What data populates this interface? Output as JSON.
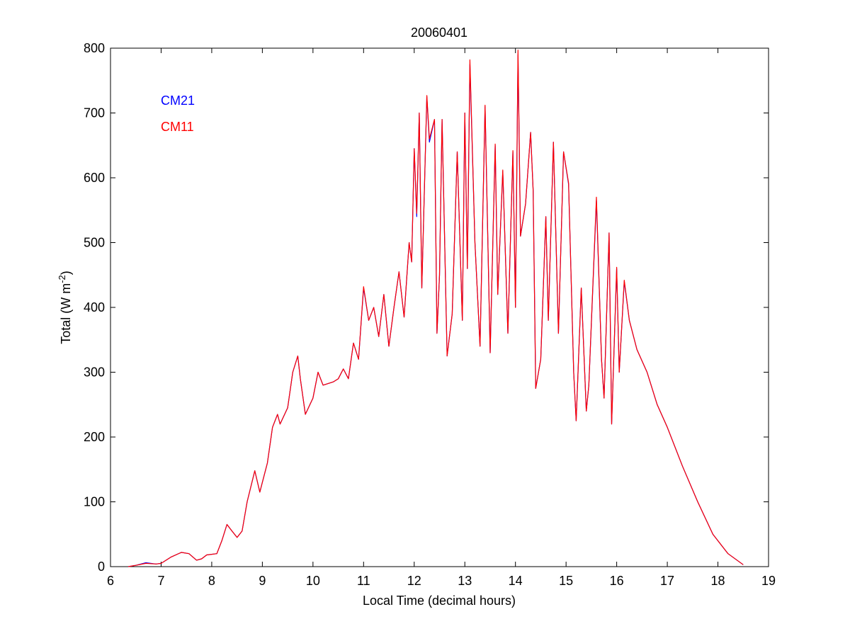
{
  "chart_data": {
    "type": "line",
    "title": "20060401",
    "xlabel": "Local Time (decimal hours)",
    "ylabel_main": "Total (W m",
    "ylabel_sup": "-2",
    "ylabel_close": ")",
    "xlim": [
      6,
      19
    ],
    "ylim": [
      0,
      800
    ],
    "xticks": [
      6,
      7,
      8,
      9,
      10,
      11,
      12,
      13,
      14,
      15,
      16,
      17,
      18,
      19
    ],
    "yticks": [
      0,
      100,
      200,
      300,
      400,
      500,
      600,
      700,
      800
    ],
    "grid": false,
    "legend_placement": "top-left",
    "x": [
      6.35,
      6.5,
      6.7,
      6.9,
      7.0,
      7.2,
      7.4,
      7.55,
      7.7,
      7.8,
      7.9,
      8.1,
      8.2,
      8.3,
      8.4,
      8.5,
      8.6,
      8.7,
      8.85,
      8.95,
      9.1,
      9.2,
      9.3,
      9.35,
      9.5,
      9.6,
      9.7,
      9.75,
      9.85,
      10.0,
      10.1,
      10.2,
      10.4,
      10.5,
      10.6,
      10.7,
      10.8,
      10.9,
      11.0,
      11.1,
      11.2,
      11.3,
      11.4,
      11.5,
      11.6,
      11.7,
      11.8,
      11.9,
      11.95,
      12.0,
      12.05,
      12.1,
      12.15,
      12.25,
      12.3,
      12.4,
      12.45,
      12.5,
      12.55,
      12.65,
      12.75,
      12.85,
      12.95,
      13.0,
      13.05,
      13.1,
      13.2,
      13.3,
      13.4,
      13.5,
      13.6,
      13.65,
      13.75,
      13.85,
      13.95,
      14.0,
      14.05,
      14.1,
      14.2,
      14.3,
      14.35,
      14.4,
      14.5,
      14.6,
      14.65,
      14.75,
      14.85,
      14.95,
      15.05,
      15.15,
      15.2,
      15.3,
      15.4,
      15.45,
      15.6,
      15.7,
      15.75,
      15.85,
      15.9,
      16.0,
      16.05,
      16.15,
      16.25,
      16.4,
      16.6,
      16.8,
      17.0,
      17.3,
      17.6,
      17.9,
      18.2,
      18.5
    ],
    "series": [
      {
        "name": "CM21",
        "color": "#0000ff",
        "values": [
          0,
          2,
          6,
          4,
          5,
          15,
          22,
          20,
          10,
          12,
          18,
          20,
          40,
          65,
          55,
          45,
          55,
          100,
          148,
          115,
          160,
          215,
          235,
          220,
          245,
          300,
          325,
          290,
          235,
          260,
          300,
          280,
          285,
          290,
          305,
          290,
          345,
          320,
          430,
          380,
          400,
          355,
          420,
          340,
          400,
          455,
          385,
          500,
          470,
          645,
          540,
          700,
          430,
          725,
          655,
          690,
          360,
          450,
          690,
          325,
          390,
          640,
          380,
          700,
          460,
          775,
          500,
          340,
          710,
          330,
          650,
          420,
          610,
          360,
          640,
          400,
          790,
          510,
          560,
          670,
          580,
          275,
          320,
          540,
          380,
          655,
          360,
          640,
          590,
          300,
          225,
          430,
          240,
          280,
          565,
          320,
          260,
          515,
          220,
          460,
          300,
          440,
          380,
          335,
          300,
          250,
          215,
          155,
          100,
          50,
          20,
          3
        ]
      },
      {
        "name": "CM11",
        "color": "#ff0000",
        "values": [
          0,
          2,
          5,
          4,
          5,
          15,
          22,
          20,
          10,
          12,
          18,
          20,
          40,
          65,
          55,
          45,
          55,
          100,
          148,
          115,
          160,
          215,
          235,
          220,
          245,
          300,
          325,
          290,
          235,
          260,
          300,
          280,
          285,
          290,
          305,
          290,
          345,
          320,
          432,
          380,
          400,
          355,
          420,
          340,
          400,
          455,
          385,
          500,
          470,
          645,
          545,
          700,
          430,
          727,
          660,
          690,
          360,
          450,
          690,
          325,
          390,
          640,
          380,
          700,
          460,
          782,
          500,
          340,
          712,
          330,
          652,
          420,
          612,
          360,
          642,
          400,
          797,
          510,
          560,
          670,
          580,
          275,
          320,
          540,
          380,
          655,
          360,
          640,
          592,
          300,
          225,
          430,
          240,
          280,
          570,
          320,
          260,
          515,
          220,
          462,
          300,
          442,
          380,
          335,
          300,
          250,
          215,
          155,
          100,
          50,
          20,
          3
        ]
      }
    ]
  }
}
